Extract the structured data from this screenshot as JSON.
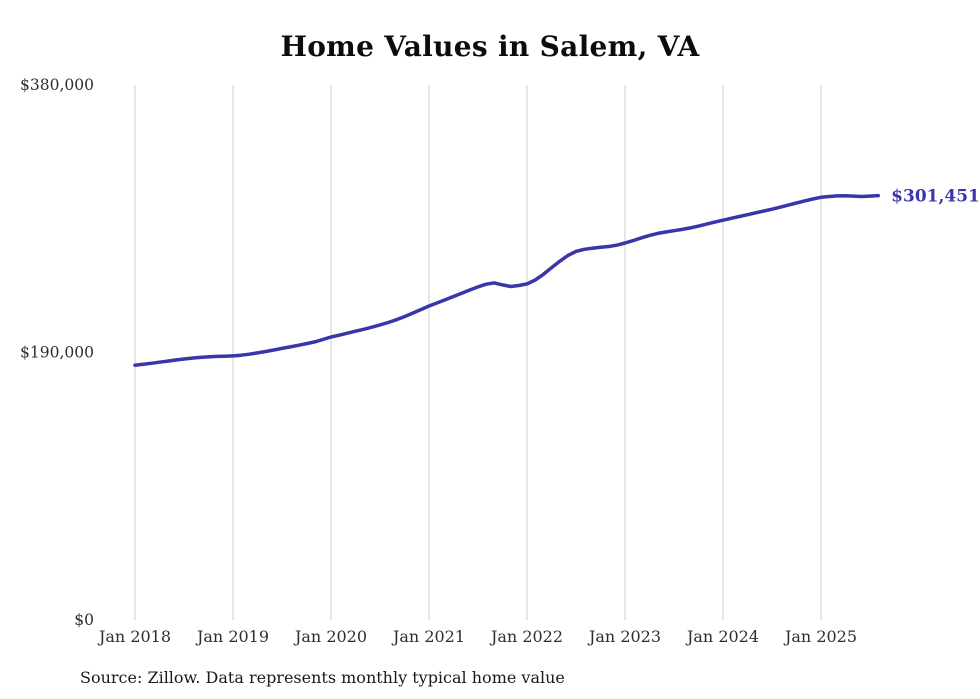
{
  "chart_data": {
    "type": "line",
    "title": "Home Values in Salem, VA",
    "source": "Source: Zillow. Data represents monthly typical home value",
    "end_label": "$301,451",
    "end_value": 301451,
    "ylim": [
      0,
      380000
    ],
    "y_ticks": [
      {
        "value": 0,
        "label": "$0"
      },
      {
        "value": 190000,
        "label": "$190,000"
      },
      {
        "value": 380000,
        "label": "$380,000"
      }
    ],
    "x_tick_labels": [
      "Jan 2018",
      "Jan 2019",
      "Jan 2020",
      "Jan 2021",
      "Jan 2022",
      "Jan 2023",
      "Jan 2024",
      "Jan 2025"
    ],
    "grid": "vertical-only",
    "legend": "none",
    "line_color": "#3a35aa",
    "grid_color": "#cccccc",
    "axis_text_color": "#2e2e2e",
    "series": [
      {
        "name": "Typical home value (monthly)",
        "start_month": "2018-01",
        "end_month": "2025-08",
        "values": [
          181000,
          181600,
          182300,
          183100,
          183900,
          184700,
          185400,
          186000,
          186500,
          186900,
          187200,
          187400,
          187600,
          188100,
          188800,
          189700,
          190700,
          191800,
          192900,
          194000,
          195100,
          196300,
          197500,
          199200,
          201000,
          202300,
          203700,
          205100,
          206500,
          208000,
          209600,
          211300,
          213200,
          215500,
          218000,
          220500,
          223000,
          225200,
          227500,
          229800,
          232100,
          234400,
          236600,
          238500,
          239400,
          238000,
          236900,
          237600,
          238700,
          241500,
          245500,
          250200,
          254800,
          258800,
          261800,
          263300,
          264100,
          264700,
          265300,
          266200,
          267800,
          269500,
          271400,
          273200,
          274600,
          275600,
          276500,
          277400,
          278500,
          279800,
          281200,
          282600,
          284000,
          285300,
          286600,
          287900,
          289200,
          290500,
          291800,
          293200,
          294700,
          296200,
          297700,
          299000,
          300200,
          300800,
          301200,
          301400,
          301100,
          300800,
          301100,
          301451
        ]
      }
    ]
  }
}
